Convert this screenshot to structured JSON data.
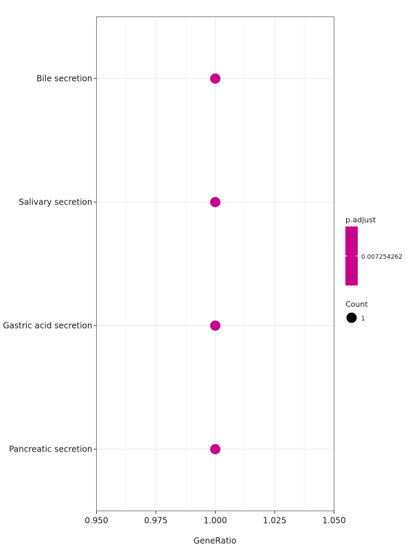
{
  "chart_data": {
    "type": "scatter",
    "title": "",
    "xlabel": "GeneRatio",
    "ylabel": "",
    "xlim": [
      0.95,
      1.05
    ],
    "x_ticks": [
      0.95,
      0.975,
      1.0,
      1.025,
      1.05
    ],
    "x_tick_labels": [
      "0.950",
      "0.975",
      "1.000",
      "1.025",
      "1.050"
    ],
    "categories": [
      "Bile secretion",
      "Salivary secretion",
      "Gastric acid secretion",
      "Pancreatic secretion"
    ],
    "points": [
      {
        "category": "Bile secretion",
        "gene_ratio": 1.0,
        "count": 1,
        "p_adjust": 0.007254262
      },
      {
        "category": "Salivary secretion",
        "gene_ratio": 1.0,
        "count": 1,
        "p_adjust": 0.007254262
      },
      {
        "category": "Gastric acid secretion",
        "gene_ratio": 1.0,
        "count": 1,
        "p_adjust": 0.007254262
      },
      {
        "category": "Pancreatic secretion",
        "gene_ratio": 1.0,
        "count": 1,
        "p_adjust": 0.007254262
      }
    ],
    "grid": true,
    "legend": {
      "placement": "right",
      "color": {
        "title": "p.adjust",
        "label": "0.007254262",
        "color": "#c8008c"
      },
      "size": {
        "title": "Count",
        "label": "1",
        "color": "#000000"
      }
    },
    "colors": {
      "point": "#c8008c",
      "panel_border": "#7f7f7f"
    }
  }
}
